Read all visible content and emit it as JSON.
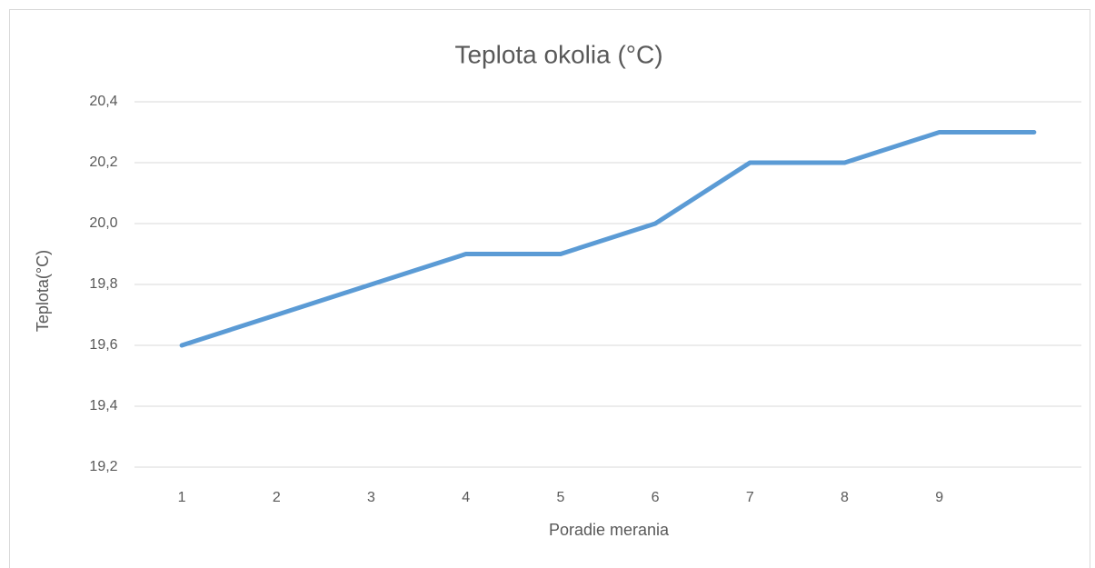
{
  "chart_data": {
    "type": "line",
    "title": "Teplota okolia (°C)",
    "x_label": "Poradie merania",
    "y_label": "Teplota(°C)",
    "categories": [
      "1",
      "2",
      "3",
      "4",
      "5",
      "6",
      "7",
      "8",
      "9",
      null
    ],
    "series": [
      {
        "name": "Teplota",
        "color": "#5b9bd5",
        "values": [
          19.6,
          19.7,
          19.8,
          19.9,
          19.9,
          20.0,
          20.2,
          20.2,
          20.3,
          20.3
        ]
      }
    ],
    "ylim": [
      19.2,
      20.4
    ],
    "yticks": [
      {
        "value": 19.2,
        "label": "19,2"
      },
      {
        "value": 19.4,
        "label": "19,4"
      },
      {
        "value": 19.6,
        "label": "19,6"
      },
      {
        "value": 19.8,
        "label": "19,8"
      },
      {
        "value": 20.0,
        "label": "20,0"
      },
      {
        "value": 20.2,
        "label": "20,2"
      },
      {
        "value": 20.4,
        "label": "20,4"
      }
    ],
    "grid": true,
    "legend": false
  }
}
